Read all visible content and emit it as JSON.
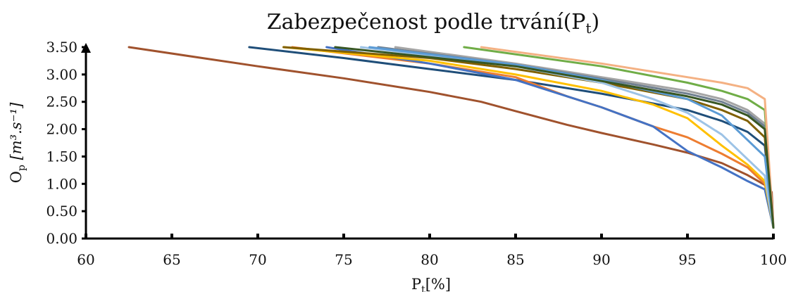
{
  "chart_data": {
    "type": "line",
    "title": "Zabezpečenost podle trvání(P",
    "title_sub": "t",
    "title_close": ")",
    "xlabel_main": "P",
    "xlabel_sub": "t",
    "xlabel_unit": "[%]",
    "ylabel_main": "O",
    "ylabel_sub": "p",
    "ylabel_unit": " [m³.s⁻¹]",
    "xlim": [
      60,
      100
    ],
    "ylim": [
      0,
      3.5
    ],
    "xticks": [
      "60",
      "65",
      "70",
      "75",
      "80",
      "85",
      "90",
      "95",
      "100"
    ],
    "yticks": [
      "0.00",
      "0.50",
      "1.00",
      "1.50",
      "2.00",
      "2.50",
      "3.00",
      "3.50"
    ],
    "grid": false,
    "legend": "none",
    "series": [
      {
        "color": "#A0522D",
        "points": [
          [
            62.5,
            3.5
          ],
          [
            70,
            3.15
          ],
          [
            75,
            2.93
          ],
          [
            80,
            2.68
          ],
          [
            83,
            2.5
          ],
          [
            85,
            2.33
          ],
          [
            88,
            2.08
          ],
          [
            90,
            1.93
          ],
          [
            93,
            1.72
          ],
          [
            95,
            1.57
          ],
          [
            97,
            1.38
          ],
          [
            98.5,
            1.16
          ],
          [
            99.5,
            0.98
          ],
          [
            99.9,
            0.85
          ],
          [
            100,
            0.2
          ]
        ]
      },
      {
        "color": "#1F4E79",
        "points": [
          [
            69.5,
            3.5
          ],
          [
            75,
            3.3
          ],
          [
            80,
            3.1
          ],
          [
            85,
            2.9
          ],
          [
            90,
            2.65
          ],
          [
            95,
            2.35
          ],
          [
            97,
            2.15
          ],
          [
            98.5,
            1.95
          ],
          [
            99.5,
            1.7
          ],
          [
            100,
            0.2
          ]
        ]
      },
      {
        "color": "#ED7D31",
        "points": [
          [
            72,
            3.5
          ],
          [
            80,
            3.2
          ],
          [
            85,
            2.95
          ],
          [
            88,
            2.6
          ],
          [
            90,
            2.4
          ],
          [
            93,
            2.05
          ],
          [
            95,
            1.85
          ],
          [
            97,
            1.55
          ],
          [
            98.5,
            1.3
          ],
          [
            99.5,
            1.0
          ],
          [
            100,
            0.2
          ]
        ]
      },
      {
        "color": "#4472C4",
        "points": [
          [
            74,
            3.5
          ],
          [
            80,
            3.2
          ],
          [
            85,
            2.9
          ],
          [
            88,
            2.6
          ],
          [
            90,
            2.4
          ],
          [
            93,
            2.05
          ],
          [
            95,
            1.6
          ],
          [
            97,
            1.3
          ],
          [
            98.5,
            1.05
          ],
          [
            99.5,
            0.9
          ],
          [
            100,
            0.2
          ]
        ]
      },
      {
        "color": "#FFC000",
        "points": [
          [
            71.5,
            3.5
          ],
          [
            80,
            3.25
          ],
          [
            85,
            3.0
          ],
          [
            90,
            2.7
          ],
          [
            93,
            2.45
          ],
          [
            95,
            2.2
          ],
          [
            97,
            1.7
          ],
          [
            98.5,
            1.35
          ],
          [
            99.5,
            1.05
          ],
          [
            100,
            0.2
          ]
        ]
      },
      {
        "color": "#806000",
        "points": [
          [
            71.5,
            3.5
          ],
          [
            80,
            3.3
          ],
          [
            85,
            3.1
          ],
          [
            90,
            2.85
          ],
          [
            95,
            2.55
          ],
          [
            97,
            2.35
          ],
          [
            98.5,
            2.15
          ],
          [
            99.5,
            1.85
          ],
          [
            100,
            0.2
          ]
        ]
      },
      {
        "color": "#9DC3E6",
        "points": [
          [
            76,
            3.5
          ],
          [
            80,
            3.35
          ],
          [
            85,
            3.15
          ],
          [
            90,
            2.85
          ],
          [
            93,
            2.55
          ],
          [
            95,
            2.3
          ],
          [
            97,
            1.9
          ],
          [
            98.5,
            1.45
          ],
          [
            99.5,
            1.15
          ],
          [
            100,
            0.2
          ]
        ]
      },
      {
        "color": "#A5A5A5",
        "points": [
          [
            78,
            3.5
          ],
          [
            85,
            3.2
          ],
          [
            90,
            2.95
          ],
          [
            95,
            2.7
          ],
          [
            97,
            2.55
          ],
          [
            98.5,
            2.35
          ],
          [
            99.5,
            2.1
          ],
          [
            100,
            0.2
          ]
        ]
      },
      {
        "color": "#6F7F8F",
        "points": [
          [
            77,
            3.5
          ],
          [
            85,
            3.18
          ],
          [
            90,
            2.92
          ],
          [
            95,
            2.65
          ],
          [
            97,
            2.5
          ],
          [
            98.5,
            2.3
          ],
          [
            99.5,
            2.05
          ],
          [
            100,
            0.2
          ]
        ]
      },
      {
        "color": "#70AD47",
        "points": [
          [
            82,
            3.5
          ],
          [
            90,
            3.15
          ],
          [
            95,
            2.85
          ],
          [
            97,
            2.7
          ],
          [
            98.5,
            2.55
          ],
          [
            99.5,
            2.35
          ],
          [
            100,
            0.2
          ]
        ]
      },
      {
        "color": "#F4B183",
        "points": [
          [
            83,
            3.5
          ],
          [
            90,
            3.2
          ],
          [
            95,
            2.95
          ],
          [
            97,
            2.85
          ],
          [
            98.5,
            2.75
          ],
          [
            99.5,
            2.55
          ],
          [
            100,
            0.2
          ]
        ]
      },
      {
        "color": "#5B9BD5",
        "points": [
          [
            76.5,
            3.5
          ],
          [
            85,
            3.18
          ],
          [
            90,
            2.9
          ],
          [
            95,
            2.55
          ],
          [
            97,
            2.25
          ],
          [
            98.5,
            1.8
          ],
          [
            99.5,
            1.5
          ],
          [
            100,
            0.2
          ]
        ]
      },
      {
        "color": "#375623",
        "points": [
          [
            74.5,
            3.5
          ],
          [
            85,
            3.15
          ],
          [
            90,
            2.88
          ],
          [
            95,
            2.6
          ],
          [
            97,
            2.45
          ],
          [
            98.5,
            2.25
          ],
          [
            99.5,
            2.0
          ],
          [
            100,
            0.2
          ]
        ]
      }
    ]
  }
}
